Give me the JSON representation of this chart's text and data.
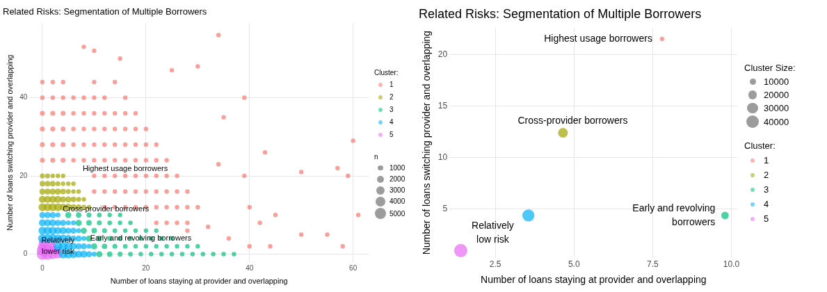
{
  "chart_data": [
    {
      "type": "bubble",
      "title": "Related Risks: Segmentation of Multiple Borrowers",
      "xlabel": "Number of loans staying at provider and overlapping",
      "ylabel": "Number of loans switching provider and overlapping",
      "legend_title": "Cluster:",
      "legend": "right",
      "grid": true,
      "marker": "circle",
      "xlim": [
        -2.5,
        63
      ],
      "xticks": [
        0,
        20,
        40,
        60
      ],
      "ylim": [
        -2,
        59
      ],
      "yticks": [
        0,
        20,
        40
      ],
      "size_legend": [
        1000,
        2000,
        3000,
        4000,
        5000
      ],
      "series": [
        {
          "name": "1",
          "color": "#f8766d",
          "x": [
            0,
            2,
            4,
            6,
            8,
            10,
            12,
            14,
            16,
            18,
            20,
            22,
            24,
            0,
            2,
            4,
            6,
            8,
            10,
            12,
            14,
            16,
            18,
            20,
            22,
            0,
            2,
            4,
            6,
            8,
            10,
            12,
            14,
            16,
            18,
            20,
            0,
            2,
            4,
            6,
            8,
            10,
            12,
            14,
            16,
            18,
            0,
            2,
            4,
            6,
            8,
            10,
            12,
            16,
            0,
            2,
            4,
            10,
            14,
            10,
            12,
            14,
            16,
            18,
            20,
            22,
            24,
            26,
            10,
            12,
            14,
            16,
            18,
            20,
            22,
            24,
            26,
            28,
            12,
            14,
            16,
            18,
            20,
            22,
            24,
            26,
            28,
            30,
            22,
            24,
            26,
            28,
            34,
            8,
            10,
            15,
            39,
            35,
            34,
            39,
            45,
            40,
            50,
            59,
            57,
            61,
            55,
            58,
            40,
            44,
            60,
            50,
            30,
            25,
            43,
            28,
            32,
            36,
            42
          ],
          "values": [
            24,
            24,
            24,
            24,
            24,
            24,
            24,
            24,
            24,
            24,
            24,
            24,
            24,
            28,
            28,
            28,
            28,
            28,
            28,
            28,
            28,
            28,
            28,
            28,
            28,
            32,
            32,
            32,
            32,
            32,
            32,
            32,
            32,
            32,
            32,
            32,
            36,
            36,
            36,
            36,
            36,
            36,
            36,
            36,
            36,
            36,
            40,
            40,
            40,
            40,
            40,
            40,
            40,
            40,
            44,
            44,
            44,
            44,
            44,
            20,
            20,
            20,
            20,
            20,
            20,
            20,
            20,
            20,
            16,
            16,
            16,
            16,
            16,
            16,
            16,
            16,
            16,
            16,
            12,
            12,
            12,
            12,
            12,
            12,
            12,
            12,
            12,
            12,
            8,
            8,
            8,
            8,
            56,
            53,
            52,
            50,
            40,
            35,
            23,
            20,
            10,
            12,
            21,
            20,
            22,
            10,
            5,
            2,
            2,
            2,
            29,
            5,
            48,
            47,
            26,
            6,
            7,
            4,
            8
          ],
          "sizes": [
            1000,
            1000,
            1000,
            800,
            800,
            800,
            800,
            800,
            800,
            800,
            800,
            800,
            800,
            1000,
            1000,
            1000,
            800,
            800,
            800,
            800,
            800,
            800,
            800,
            800,
            800,
            1000,
            1000,
            1000,
            800,
            800,
            800,
            800,
            800,
            800,
            800,
            800,
            1000,
            1000,
            1000,
            800,
            800,
            800,
            800,
            800,
            800,
            800,
            800,
            800,
            800,
            800,
            800,
            800,
            800,
            800,
            800,
            800,
            800,
            800,
            800,
            800,
            800,
            800,
            800,
            800,
            800,
            800,
            800,
            800,
            800,
            800,
            800,
            800,
            800,
            800,
            800,
            800,
            800,
            800,
            800,
            800,
            800,
            800,
            800,
            800,
            800,
            800,
            800,
            800,
            800,
            800,
            800,
            800,
            800,
            800,
            800,
            800,
            800,
            800,
            800,
            800,
            800,
            800,
            800,
            800,
            800,
            800,
            800,
            800,
            800,
            800,
            800,
            800,
            800,
            800,
            800,
            800,
            800,
            800,
            800
          ]
        },
        {
          "name": "2",
          "color": "#a3a500",
          "x": [
            0,
            1,
            2,
            3,
            4,
            5,
            6,
            7,
            8,
            9,
            0,
            1,
            2,
            3,
            4,
            5,
            6,
            7,
            8,
            0,
            1,
            2,
            3,
            4,
            5,
            6,
            7,
            0,
            1,
            2,
            3,
            4,
            5,
            6,
            0,
            1,
            2,
            3,
            4
          ],
          "values": [
            12,
            12,
            12,
            12,
            12,
            12,
            12,
            12,
            12,
            12,
            14,
            14,
            14,
            14,
            14,
            14,
            14,
            14,
            14,
            16,
            16,
            16,
            16,
            16,
            16,
            16,
            16,
            18,
            18,
            18,
            18,
            18,
            18,
            18,
            20,
            20,
            20,
            20,
            20
          ],
          "sizes": [
            2500,
            2500,
            2500,
            2500,
            2000,
            2000,
            1500,
            1200,
            1000,
            800,
            2000,
            2000,
            2000,
            2000,
            1500,
            1500,
            1200,
            1000,
            800,
            1500,
            1500,
            1500,
            1500,
            1200,
            1000,
            800,
            800,
            1200,
            1200,
            1200,
            1000,
            800,
            800,
            800,
            1000,
            1000,
            800,
            800,
            800
          ]
        },
        {
          "name": "3",
          "color": "#00bf7d",
          "x": [
            11,
            13,
            15,
            17,
            19,
            21,
            23,
            25,
            27,
            29,
            31,
            33,
            35,
            37,
            10,
            12,
            14,
            16,
            18,
            20,
            22,
            24,
            26,
            28,
            30,
            9,
            11,
            13,
            15,
            17,
            19,
            21,
            23,
            25,
            8,
            10,
            12,
            14,
            16,
            18,
            20,
            22,
            7,
            9,
            11,
            13,
            15,
            17,
            5,
            7,
            9,
            11,
            13,
            15
          ],
          "values": [
            0,
            0,
            0,
            0,
            0,
            0,
            0,
            0,
            0,
            0,
            0,
            0,
            0,
            0,
            2,
            2,
            2,
            2,
            2,
            2,
            2,
            2,
            2,
            2,
            2,
            4,
            4,
            4,
            4,
            4,
            4,
            4,
            4,
            4,
            6,
            6,
            6,
            6,
            6,
            6,
            6,
            6,
            8,
            8,
            8,
            8,
            8,
            8,
            10,
            10,
            10,
            10,
            10,
            10
          ],
          "sizes": [
            1500,
            1200,
            1000,
            900,
            800,
            800,
            800,
            800,
            800,
            800,
            800,
            800,
            800,
            800,
            1500,
            1200,
            1000,
            900,
            800,
            800,
            800,
            800,
            800,
            800,
            800,
            1500,
            1200,
            1000,
            900,
            800,
            800,
            800,
            800,
            800,
            1500,
            1200,
            1000,
            900,
            800,
            800,
            800,
            800,
            1500,
            1200,
            1000,
            900,
            800,
            800,
            1500,
            1200,
            1000,
            900,
            800,
            800
          ]
        },
        {
          "name": "4",
          "color": "#00b0f6",
          "x": [
            4,
            5,
            6,
            7,
            8,
            9,
            10,
            3,
            4,
            5,
            6,
            7,
            8,
            9,
            0,
            1,
            2,
            3,
            4,
            5,
            6,
            7,
            8,
            0,
            1,
            2,
            3,
            4,
            5,
            6,
            7,
            0,
            1,
            2,
            3,
            4,
            5,
            6,
            0,
            1,
            2,
            3
          ],
          "values": [
            0,
            0,
            0,
            0,
            0,
            0,
            0,
            2,
            2,
            2,
            2,
            2,
            2,
            2,
            4,
            4,
            4,
            4,
            4,
            4,
            4,
            4,
            4,
            6,
            6,
            6,
            6,
            6,
            6,
            6,
            6,
            8,
            8,
            8,
            8,
            8,
            8,
            8,
            10,
            10,
            10,
            10
          ],
          "sizes": [
            3000,
            3000,
            2500,
            2000,
            2000,
            1500,
            1000,
            3000,
            3000,
            2500,
            2000,
            1500,
            1500,
            1000,
            3000,
            3000,
            3000,
            2500,
            2500,
            2000,
            1500,
            1500,
            1000,
            2500,
            2500,
            2500,
            2000,
            2000,
            1500,
            1500,
            1000,
            2000,
            2000,
            2000,
            1500,
            1500,
            1000,
            1000,
            1500,
            1500,
            1500,
            1000
          ]
        },
        {
          "name": "5",
          "color": "#e76bf3",
          "x": [
            0,
            1,
            2,
            3,
            0,
            1,
            2,
            3,
            0,
            1,
            2,
            0,
            1,
            2
          ],
          "values": [
            0,
            0,
            0,
            0,
            1,
            1,
            1,
            1,
            2,
            2,
            2,
            3,
            3,
            3
          ],
          "sizes": [
            5000,
            5000,
            4000,
            3000,
            5000,
            4000,
            3000,
            2000,
            3000,
            2500,
            2000,
            2000,
            1500,
            1000
          ]
        }
      ],
      "annotations": [
        "n",
        {
          "text": "Highest usage borrowers",
          "x": 16,
          "y": 20
        },
        {
          "text": "Cross-provider borrowers",
          "x": 12,
          "y": 12
        },
        {
          "text": "Early and revolving borrowers",
          "x": 19,
          "y": 4
        },
        {
          "text": "Relatively\nlower risk",
          "x": 3,
          "y": 2
        }
      ]
    },
    {
      "type": "bubble",
      "title": "Related Risks: Segmentation of Multiple Borrowers",
      "xlabel": "Number of loans staying at provider and overlapping",
      "ylabel": "Number of loans switching provider and overlapping",
      "legend_title": "Cluster:",
      "legend": "right",
      "grid": true,
      "marker": "circle",
      "xlim": [
        1.04,
        10.2
      ],
      "xticks": [
        {
          "value": 2.5,
          "label": "2.5"
        },
        {
          "value": 5,
          "label": "5.0"
        },
        {
          "value": 7.5,
          "label": "7.5"
        },
        {
          "value": 10,
          "label": "10.0"
        }
      ],
      "ylim": [
        0.3,
        22.6
      ],
      "yticks": [
        5,
        10,
        15,
        20
      ],
      "size_legend": [
        10000,
        20000,
        30000,
        40000
      ],
      "series": [
        {
          "name": "1",
          "color": "#f8766d",
          "x": [
            7.8
          ],
          "values": [
            21.5
          ],
          "sizes": [
            5000
          ]
        },
        {
          "name": "2",
          "color": "#a3a500",
          "x": [
            4.65
          ],
          "values": [
            12.4
          ],
          "sizes": [
            24000
          ]
        },
        {
          "name": "3",
          "color": "#00bf7d",
          "x": [
            9.8
          ],
          "values": [
            4.4
          ],
          "sizes": [
            14500
          ]
        },
        {
          "name": "4",
          "color": "#00b0f6",
          "x": [
            3.55
          ],
          "values": [
            4.4
          ],
          "sizes": [
            37000
          ]
        },
        {
          "name": "5",
          "color": "#e76bf3",
          "x": [
            1.4
          ],
          "values": [
            1
          ],
          "sizes": [
            45000
          ]
        }
      ],
      "annotations": [
        "Cluster Size:",
        {
          "text": "Highest usage borrowers",
          "x": 7.8,
          "y": 21.5
        },
        {
          "text": "Cross-provider borrowers",
          "x": 4.65,
          "y": 12.4
        },
        {
          "text": "Early and revolving\nborrowers",
          "x": 9.8,
          "y": 4.4
        },
        {
          "text": "Relatively\nlow risk",
          "x": 1.4,
          "y": 1
        }
      ]
    }
  ]
}
